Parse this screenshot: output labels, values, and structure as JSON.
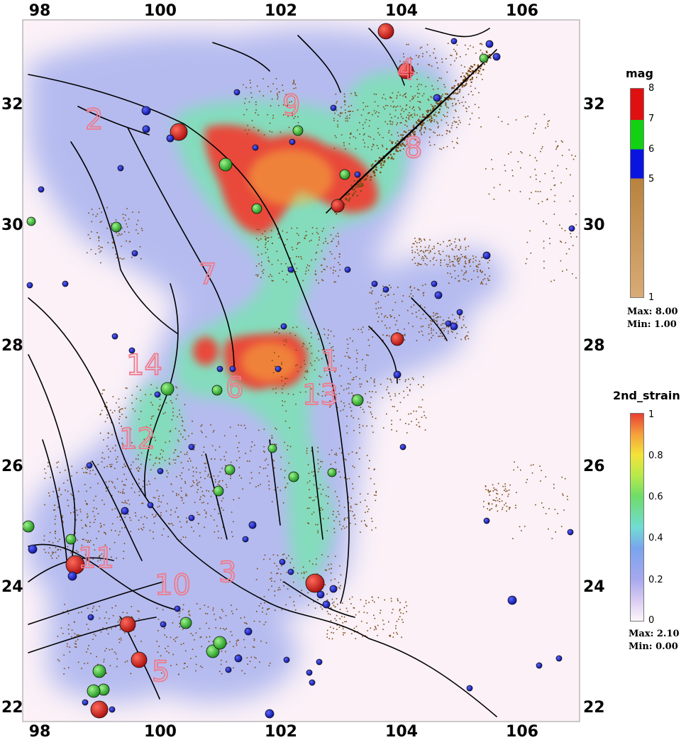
{
  "map": {
    "x_ticks": [
      "98",
      "100",
      "102",
      "104",
      "106"
    ],
    "y_ticks": [
      "32",
      "30",
      "28",
      "26",
      "24",
      "22"
    ],
    "zone_labels": [
      "1",
      "2",
      "3",
      "4",
      "5",
      "6",
      "7",
      "8",
      "9",
      "10",
      "11",
      "12",
      "13",
      "14"
    ],
    "colors": {
      "strain_high": "#e8483a",
      "strain_mid": "#6fdc6a",
      "strain_low": "#9aa6ec",
      "strain_zero": "#fbf1f7",
      "quake_small": "#7a4a12",
      "fault": "#000000",
      "zone_label": "#f07a8a"
    }
  },
  "legend_mag": {
    "title": "mag",
    "ticks": [
      "8",
      "7",
      "6",
      "5",
      "1"
    ],
    "max_label": "Max: 8.00",
    "min_label": "Min: 1.00",
    "colors": [
      "#e01010",
      "#12d012",
      "#0a14e0",
      "#b8823e",
      "#d8ab75"
    ]
  },
  "legend_strain": {
    "title": "2nd_strain",
    "ticks": [
      "1",
      "0.8",
      "0.6",
      "0.4",
      "0.2",
      "0"
    ],
    "max_label": "Max: 2.10",
    "min_label": "Min: 0.00"
  }
}
